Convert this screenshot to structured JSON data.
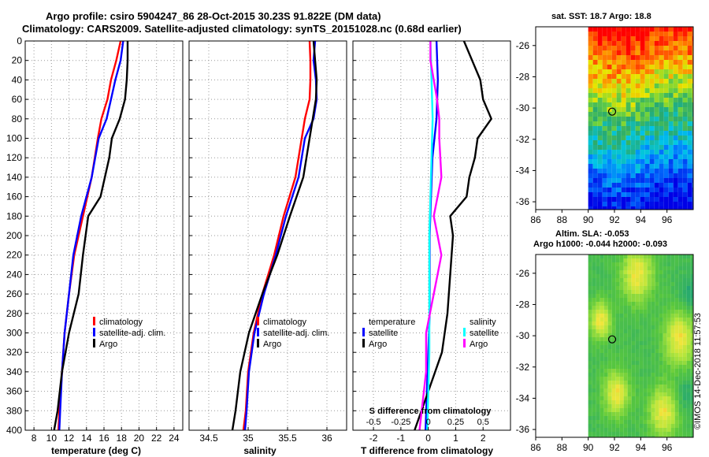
{
  "title": {
    "line1": "Argo profile: csiro 5904247_86 28-Oct-2015 30.23S 91.822E (DM data)",
    "line2": "Climatology: CARS2009. Satellite-adjusted climatology: synTS_20151028.nc (0.68d earlier)"
  },
  "credit": "©IMOS 14-Dec-2018 11:57:53",
  "colors": {
    "climatology": "#ff0000",
    "satellite": "#0000ff",
    "argo": "#000000",
    "sat_salinity": "#00ffff",
    "clim_salinity": "#ff00ff",
    "grid": "#999999"
  },
  "chart_data": [
    {
      "type": "line",
      "name": "temperature",
      "xlabel": "temperature (deg C)",
      "ylabel": "",
      "xlim": [
        7,
        25
      ],
      "ylim": [
        400,
        0
      ],
      "xticks": [
        8,
        10,
        12,
        14,
        16,
        18,
        20,
        22,
        24
      ],
      "yticks": [
        0,
        20,
        40,
        60,
        80,
        100,
        120,
        140,
        160,
        180,
        200,
        220,
        240,
        260,
        280,
        300,
        320,
        340,
        360,
        380,
        400
      ],
      "legend": {
        "position": "center-right",
        "entries": [
          "climatology",
          "satellite-adj. clim.",
          "Argo"
        ]
      },
      "series": [
        {
          "name": "climatology",
          "color": "#ff0000",
          "depth": [
            0,
            20,
            40,
            60,
            80,
            100,
            140,
            180,
            220,
            260,
            300,
            340,
            380,
            400
          ],
          "values": [
            17.9,
            17.4,
            16.8,
            16.4,
            15.7,
            15.3,
            14.6,
            13.6,
            12.6,
            12.0,
            11.5,
            11.2,
            10.9,
            10.8
          ]
        },
        {
          "name": "satellite-adj. clim.",
          "color": "#0000ff",
          "depth": [
            0,
            20,
            40,
            60,
            80,
            100,
            140,
            180,
            220,
            260,
            300,
            340,
            380,
            400
          ],
          "values": [
            18.2,
            17.9,
            17.3,
            16.8,
            16.3,
            15.4,
            14.6,
            13.4,
            12.5,
            12.0,
            11.5,
            11.2,
            11.0,
            10.9
          ]
        },
        {
          "name": "Argo",
          "color": "#000000",
          "depth": [
            0,
            20,
            40,
            60,
            80,
            100,
            120,
            160,
            180,
            220,
            260,
            300,
            340,
            380,
            400
          ],
          "values": [
            18.7,
            18.7,
            18.6,
            18.4,
            17.8,
            16.9,
            16.6,
            15.6,
            14.2,
            13.6,
            13.1,
            12.0,
            11.2,
            10.7,
            10.3
          ]
        }
      ]
    },
    {
      "type": "line",
      "name": "salinity",
      "xlabel": "salinity",
      "xlim": [
        34.25,
        36.25
      ],
      "ylim": [
        400,
        0
      ],
      "xticks": [
        34.5,
        35,
        35.5,
        36
      ],
      "xticklabels": [
        "34.5",
        "35",
        "35.5",
        "36"
      ],
      "legend": {
        "position": "center-right",
        "entries": [
          "climatology",
          "satellite-adj. clim.",
          "Argo"
        ]
      },
      "series": [
        {
          "name": "climatology",
          "color": "#ff0000",
          "depth": [
            0,
            20,
            40,
            60,
            70,
            80,
            100,
            140,
            180,
            220,
            260,
            300,
            340,
            380,
            400
          ],
          "values": [
            35.78,
            35.79,
            35.79,
            35.78,
            35.75,
            35.72,
            35.68,
            35.6,
            35.45,
            35.33,
            35.18,
            35.07,
            35.0,
            34.97,
            34.94
          ]
        },
        {
          "name": "satellite-adj. clim.",
          "color": "#0000ff",
          "depth": [
            0,
            20,
            40,
            60,
            80,
            100,
            140,
            180,
            220,
            260,
            300,
            340,
            380,
            400
          ],
          "values": [
            35.85,
            35.83,
            35.86,
            35.87,
            35.83,
            35.72,
            35.64,
            35.48,
            35.35,
            35.2,
            35.08,
            35.01,
            34.98,
            34.96
          ]
        },
        {
          "name": "Argo",
          "color": "#000000",
          "depth": [
            0,
            20,
            40,
            60,
            80,
            100,
            140,
            180,
            220,
            260,
            300,
            340,
            380,
            400
          ],
          "values": [
            35.83,
            35.85,
            35.87,
            35.86,
            35.82,
            35.78,
            35.7,
            35.53,
            35.37,
            35.18,
            35.01,
            34.9,
            34.84,
            34.8
          ]
        }
      ]
    },
    {
      "type": "line",
      "name": "difference",
      "xlabel": "T difference from climatology",
      "xlim": [
        -2.75,
        3
      ],
      "ylim": [
        400,
        0
      ],
      "xticks": [
        -2,
        -1,
        0,
        1,
        2
      ],
      "xticklabels": [
        "-2",
        "-1",
        "0",
        "1",
        "2"
      ],
      "secondary_axis": {
        "label": "S difference from climatology",
        "ticks": [
          -0.5,
          -0.25,
          0,
          0.25,
          0.5
        ],
        "ticklabels": [
          "-0.5",
          "-0.25",
          "0",
          "0.25",
          "0.5"
        ],
        "scale_to_T": 4
      },
      "legend": {
        "position": "center",
        "groups": [
          {
            "title": "temperature",
            "entries": [
              "satellite",
              "Argo"
            ]
          },
          {
            "title": "salinity",
            "entries": [
              "satellite",
              "Argo"
            ]
          }
        ]
      },
      "series": [
        {
          "name": "temperature satellite",
          "color": "#0000ff",
          "depth": [
            0,
            40,
            80,
            120,
            160,
            200,
            240,
            280,
            320,
            360,
            400
          ],
          "values": [
            0.3,
            0.35,
            0.3,
            0.15,
            0.1,
            0.05,
            0.05,
            0.05,
            0.0,
            -0.05,
            -0.1
          ]
        },
        {
          "name": "temperature Argo",
          "color": "#000000",
          "depth": [
            0,
            20,
            40,
            60,
            80,
            100,
            120,
            140,
            160,
            180,
            200,
            240,
            280,
            320,
            360,
            400
          ],
          "values": [
            1.3,
            1.6,
            1.9,
            2.0,
            2.3,
            1.8,
            1.7,
            1.5,
            1.4,
            0.8,
            0.9,
            0.8,
            0.7,
            0.5,
            0.0,
            -0.5
          ]
        },
        {
          "name": "salinity satellite",
          "color": "#00ffff",
          "depth": [
            0,
            40,
            80,
            120,
            160,
            200,
            240,
            280,
            320,
            360,
            400
          ],
          "values": [
            0.02,
            0.03,
            0.04,
            0.03,
            0.02,
            0.01,
            0.01,
            0.01,
            0.01,
            0.0,
            -0.01
          ]
        },
        {
          "name": "salinity Argo",
          "color": "#ff00ff",
          "depth": [
            0,
            20,
            40,
            60,
            80,
            100,
            140,
            180,
            220,
            260,
            300,
            340,
            380,
            400
          ],
          "values": [
            0.02,
            0.02,
            0.05,
            0.08,
            0.1,
            0.1,
            0.12,
            0.05,
            0.12,
            0.05,
            -0.02,
            -0.02,
            -0.06,
            -0.08
          ]
        }
      ]
    },
    {
      "type": "heatmap",
      "name": "sst-map",
      "title": "sat. SST: 18.7 Argo: 18.8",
      "xlim": [
        86,
        98
      ],
      "ylim": [
        -36.5,
        -24.8
      ],
      "xticks": [
        86,
        88,
        90,
        92,
        94,
        96
      ],
      "yticks": [
        -26,
        -28,
        -30,
        -32,
        -34,
        -36
      ],
      "marker": {
        "lon": 91.822,
        "lat": -30.23
      }
    },
    {
      "type": "heatmap",
      "name": "sla-map",
      "title": "Altim. SLA: -0.053",
      "subtitle": "Argo h1000: -0.044 h2000: -0.093",
      "xlim": [
        86,
        98
      ],
      "ylim": [
        -36.5,
        -24.8
      ],
      "xticks": [
        86,
        88,
        90,
        92,
        94,
        96
      ],
      "yticks": [
        -26,
        -28,
        -30,
        -32,
        -34,
        -36
      ],
      "marker": {
        "lon": 91.822,
        "lat": -30.23
      }
    }
  ]
}
